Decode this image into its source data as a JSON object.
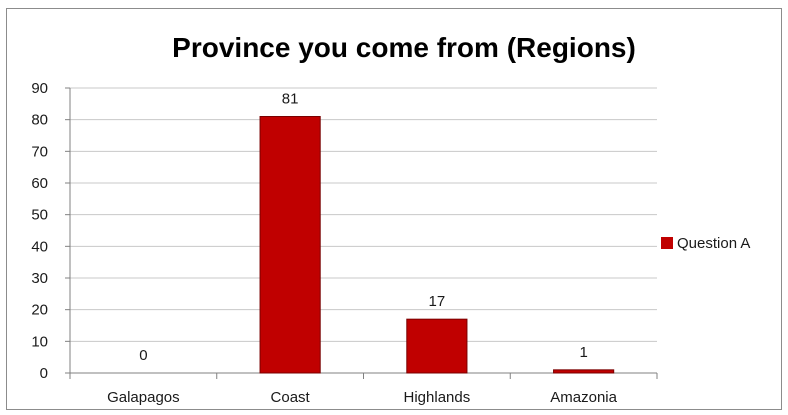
{
  "chart_data": {
    "type": "bar",
    "title": "Province you come from (Regions)",
    "categories": [
      "Galapagos",
      "Coast",
      "Highlands",
      "Amazonia"
    ],
    "series": [
      {
        "name": "Question A",
        "values": [
          0,
          81,
          17,
          1
        ],
        "color": "#c00000"
      }
    ],
    "ylim": [
      0,
      90
    ],
    "ytick_step": 10,
    "grid": true,
    "legend_position": "right"
  }
}
